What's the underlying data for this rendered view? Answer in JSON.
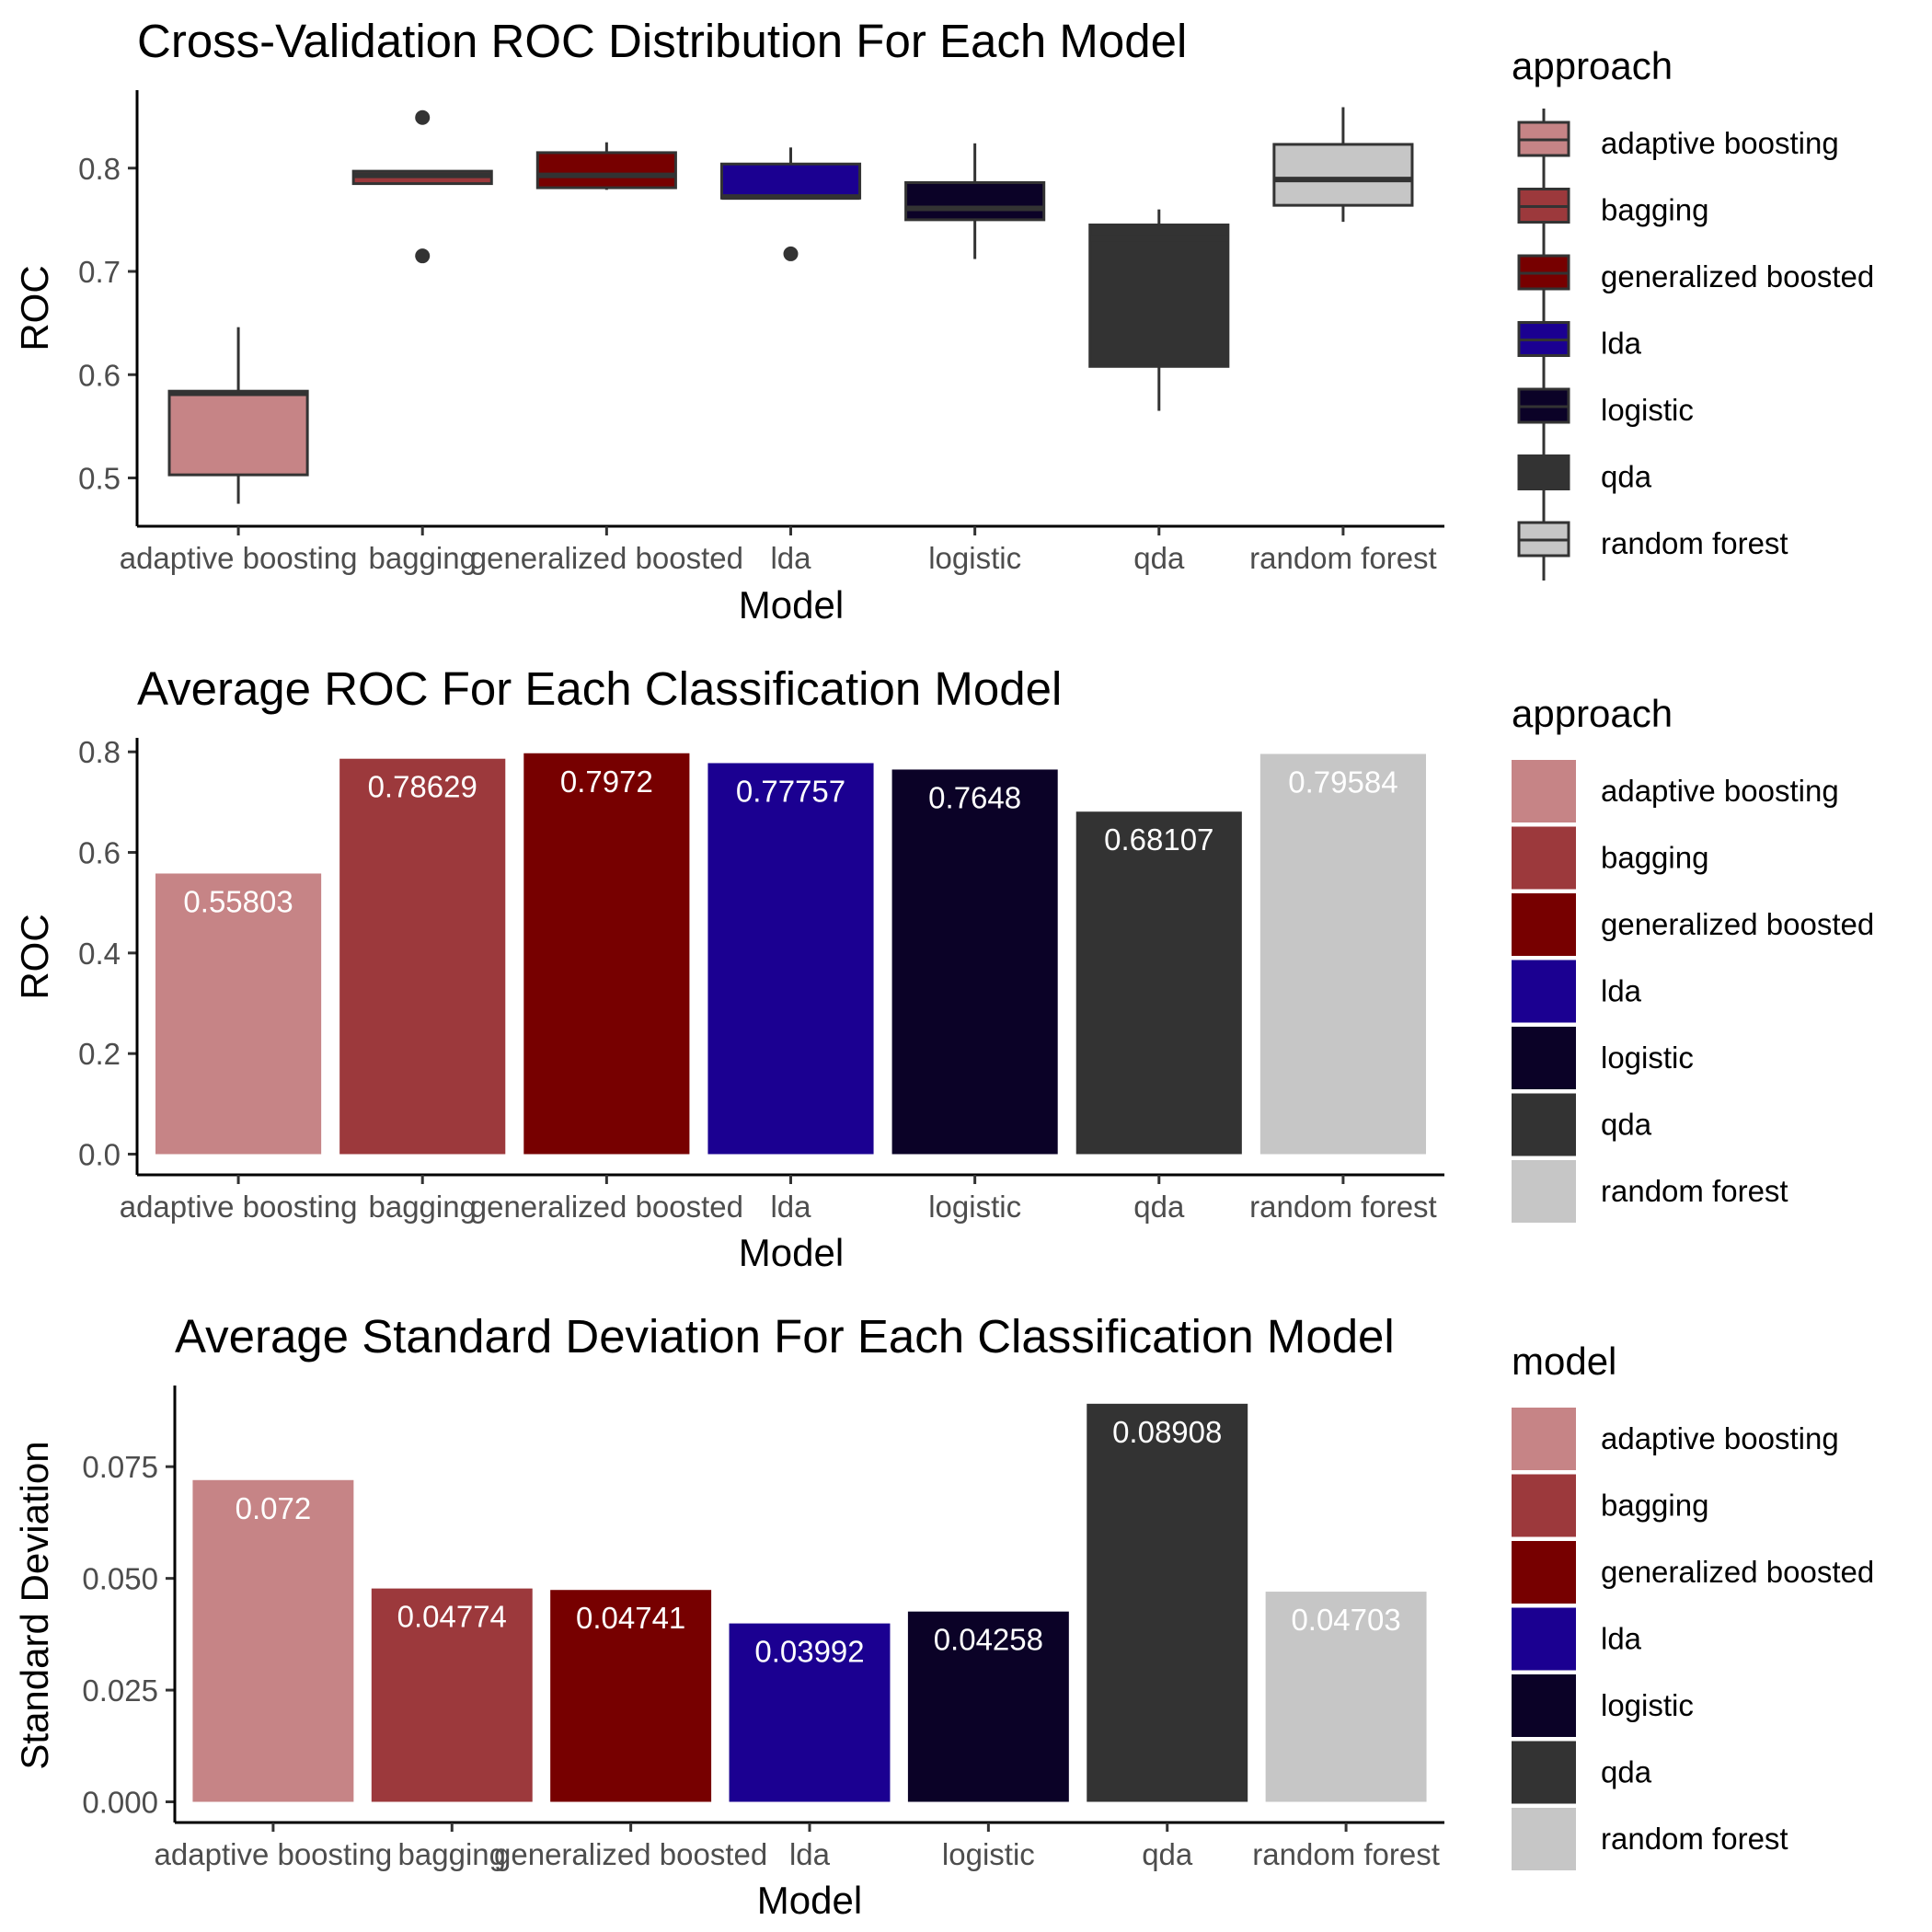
{
  "colors": {
    "adaptive boosting": "#C68486",
    "bagging": "#9C393C",
    "generalized boosted": "#770000",
    "lda": "#1B0091",
    "logistic": "#0B0227",
    "qda": "#333333",
    "random forest": "#C6C6C6"
  },
  "chart_data": [
    {
      "type": "box",
      "title": "Cross-Validation ROC Distribution For Each Model",
      "xlabel": "Model",
      "ylabel": "ROC",
      "categories": [
        "adaptive boosting",
        "bagging",
        "generalized boosted",
        "lda",
        "logistic",
        "qda",
        "random forest"
      ],
      "yticks": [
        "0.5",
        "0.6",
        "0.7",
        "0.8"
      ],
      "ylim": [
        0.46,
        0.87
      ],
      "boxes": [
        {
          "min": 0.475,
          "q1": 0.503,
          "median": 0.582,
          "q3": 0.584,
          "max": 0.646,
          "outliers": []
        },
        {
          "min": 0.785,
          "q1": 0.785,
          "median": 0.793,
          "q3": 0.797,
          "max": 0.797,
          "outliers": [
            0.715,
            0.849
          ]
        },
        {
          "min": 0.779,
          "q1": 0.781,
          "median": 0.793,
          "q3": 0.815,
          "max": 0.825,
          "outliers": []
        },
        {
          "min": 0.771,
          "q1": 0.771,
          "median": 0.772,
          "q3": 0.804,
          "max": 0.82,
          "outliers": [
            0.717
          ]
        },
        {
          "min": 0.712,
          "q1": 0.75,
          "median": 0.761,
          "q3": 0.786,
          "max": 0.824,
          "outliers": []
        },
        {
          "min": 0.565,
          "q1": 0.608,
          "median": 0.732,
          "q3": 0.745,
          "max": 0.76,
          "outliers": []
        },
        {
          "min": 0.748,
          "q1": 0.764,
          "median": 0.789,
          "q3": 0.823,
          "max": 0.859,
          "outliers": []
        }
      ],
      "legend": {
        "title": "approach",
        "position": "right"
      }
    },
    {
      "type": "bar",
      "title": "Average ROC For Each Classification Model",
      "xlabel": "Model",
      "ylabel": "ROC",
      "categories": [
        "adaptive boosting",
        "bagging",
        "generalized boosted",
        "lda",
        "logistic",
        "qda",
        "random forest"
      ],
      "values": [
        0.55803,
        0.78629,
        0.7972,
        0.77757,
        0.7648,
        0.68107,
        0.79584
      ],
      "value_labels": [
        "0.55803",
        "0.78629",
        "0.7972",
        "0.77757",
        "0.7648",
        "0.68107",
        "0.79584"
      ],
      "yticks": [
        "0.0",
        "0.2",
        "0.4",
        "0.6",
        "0.8"
      ],
      "ylim": [
        0,
        0.8
      ],
      "legend": {
        "title": "approach",
        "position": "right"
      }
    },
    {
      "type": "bar",
      "title": "Average Standard Deviation For Each Classification Model",
      "xlabel": "Model",
      "ylabel": "Standard Deviation",
      "categories": [
        "adaptive boosting",
        "bagging",
        "generalized boosted",
        "lda",
        "logistic",
        "qda",
        "random forest"
      ],
      "values": [
        0.072,
        0.04774,
        0.04741,
        0.03992,
        0.04258,
        0.08908,
        0.04703
      ],
      "value_labels": [
        "0.072",
        "0.04774",
        "0.04741",
        "0.03992",
        "0.04258",
        "0.08908",
        "0.04703"
      ],
      "yticks": [
        "0.000",
        "0.025",
        "0.050",
        "0.075"
      ],
      "ylim": [
        0,
        0.075
      ],
      "legend": {
        "title": "model",
        "position": "right"
      }
    }
  ]
}
